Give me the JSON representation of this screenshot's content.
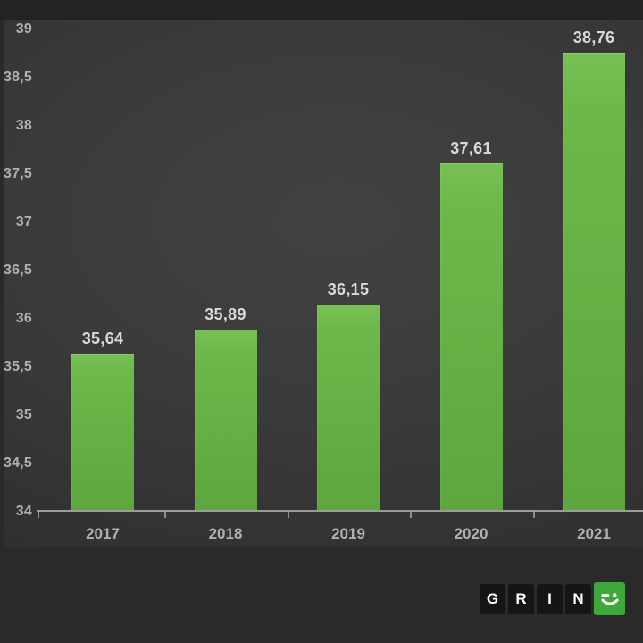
{
  "chart_data": {
    "type": "bar",
    "title": "",
    "categories": [
      "2017",
      "2018",
      "2019",
      "2020",
      "2021"
    ],
    "values": [
      35.64,
      35.89,
      36.15,
      37.61,
      38.76
    ],
    "value_labels": [
      "35,64",
      "35,89",
      "36,15",
      "37,61",
      "38,76"
    ],
    "xlabel": "",
    "ylabel": "",
    "ylim": [
      34,
      39
    ],
    "ytick_step": 0.5,
    "ytick_values": [
      34,
      34.5,
      35,
      35.5,
      36,
      36.5,
      37,
      37.5,
      38,
      38.5,
      39
    ],
    "ytick_labels": [
      "34",
      "34,5",
      "35",
      "35,5",
      "36",
      "36,5",
      "37",
      "37,5",
      "38",
      "38,5",
      "39"
    ],
    "grid": false,
    "legend": null,
    "bar_color_top": "#77c055",
    "bar_color_bottom": "#5ea63e",
    "axis_color": "#9c9c9c",
    "tick_label_color": "#b0b0b0",
    "value_label_color": "#d9d9d9",
    "background_color": "#3a3a3a"
  },
  "logo": {
    "letters": [
      "G",
      "R",
      "I",
      "N"
    ],
    "smiley_icon": "winking-smiley-icon",
    "tile_color": "#151515",
    "smiley_tile_color": "#3ea83a",
    "letter_color": "#ffffff"
  }
}
